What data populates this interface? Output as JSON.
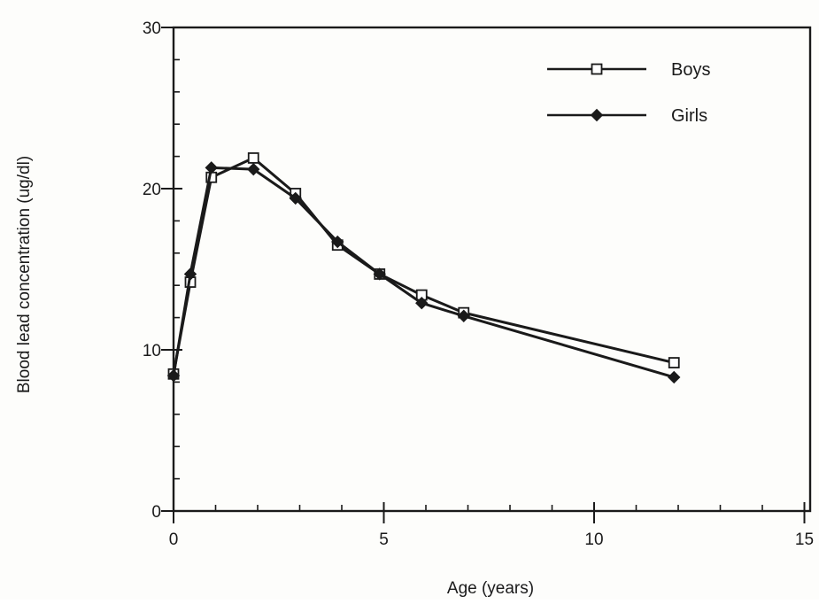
{
  "chart_data": {
    "type": "line",
    "title": "",
    "xlabel": "Age (years)",
    "ylabel": "Blood lead concentration (ug/dl)",
    "xlim": [
      0,
      15
    ],
    "ylim": [
      0,
      30
    ],
    "x_ticks": [
      0,
      5,
      10,
      15
    ],
    "y_ticks": [
      0,
      10,
      20,
      30
    ],
    "grid": false,
    "legend_position": "top-right",
    "series": [
      {
        "name": "Boys",
        "marker": "open-square",
        "color": "#1a1a1a",
        "points": [
          [
            0,
            8.5
          ],
          [
            0.4,
            14.2
          ],
          [
            0.9,
            20.7
          ],
          [
            1.9,
            21.9
          ],
          [
            2.9,
            19.7
          ],
          [
            3.9,
            16.5
          ],
          [
            4.9,
            14.7
          ],
          [
            5.9,
            13.4
          ],
          [
            6.9,
            12.3
          ],
          [
            11.9,
            9.2
          ]
        ]
      },
      {
        "name": "Girls",
        "marker": "filled-diamond",
        "color": "#1a1a1a",
        "points": [
          [
            0,
            8.4
          ],
          [
            0.4,
            14.7
          ],
          [
            0.9,
            21.3
          ],
          [
            1.9,
            21.2
          ],
          [
            2.9,
            19.4
          ],
          [
            3.9,
            16.7
          ],
          [
            4.9,
            14.7
          ],
          [
            5.9,
            12.9
          ],
          [
            6.9,
            12.1
          ],
          [
            11.9,
            8.3
          ]
        ]
      }
    ]
  }
}
